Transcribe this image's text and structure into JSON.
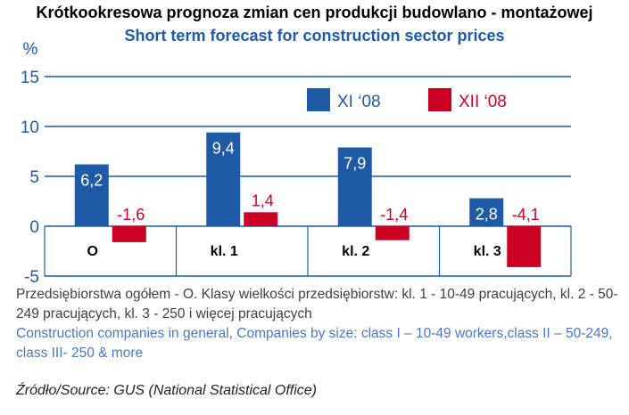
{
  "title_pl": "Krótkookresowa prognoza zmian cen produkcji budowlano - montażowej",
  "title_en": "Short term forecast for construction sector prices",
  "note_pl": "Przedsiębiorstwa ogółem - O. Klasy wielkości przedsiębiorstw: kl. 1 - 10-49 pracujących, kl. 2 - 50-249 pracujących, kl. 3 - 250 i więcej pracujących",
  "note_en": "Construction companies in general, Companies by size: class I – 10-49 workers,class II – 50-249, class III- 250 & more",
  "source": "Źródło/Source: GUS (National Statistical Office)",
  "colors": {
    "series1": "#1f5aa6",
    "series2": "#cc0022",
    "grid": "#1f5aa6",
    "label1": "#ffffff",
    "label2": "#cc0022"
  },
  "chart_data": {
    "type": "bar",
    "ylabel": "%",
    "ylim": [
      -5,
      15
    ],
    "yticks": [
      -5,
      0,
      5,
      10,
      15
    ],
    "grid": true,
    "legend_position": "top-right",
    "categories": [
      "O",
      "kl. 1",
      "kl. 2",
      "kl. 3"
    ],
    "series": [
      {
        "name": "XI ‘08",
        "values": [
          6.2,
          9.4,
          7.9,
          2.8
        ],
        "labels": [
          "6,2",
          "9,4",
          "7,9",
          "2,8"
        ]
      },
      {
        "name": "XII ‘08",
        "values": [
          -1.6,
          1.4,
          -1.4,
          -4.1
        ],
        "labels": [
          "-1,6",
          "1,4",
          "-1,4",
          "-4,1"
        ]
      }
    ]
  }
}
